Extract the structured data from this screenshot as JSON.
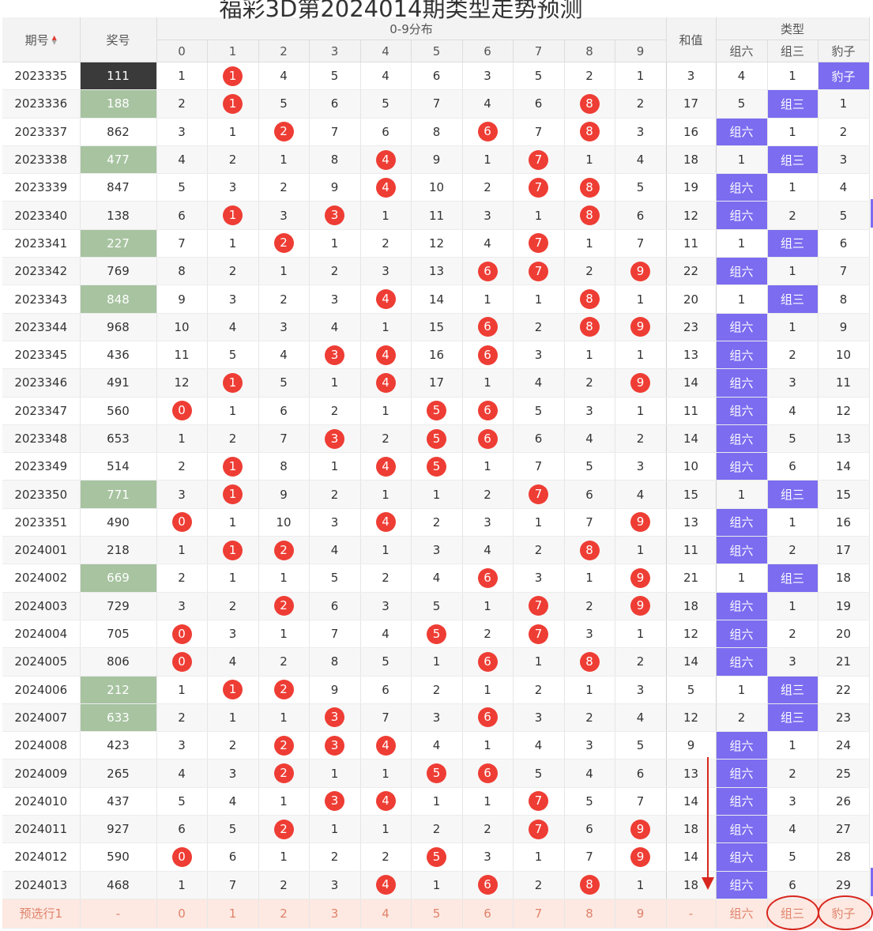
{
  "title": "福彩3D第2024014期类型走势预测",
  "header": {
    "issue": "期号",
    "number": "奖号",
    "distribution": "0-9分布",
    "sum": "和值",
    "type": "类型",
    "digits": [
      "0",
      "1",
      "2",
      "3",
      "4",
      "5",
      "6",
      "7",
      "8",
      "9"
    ],
    "types": [
      "组六",
      "组三",
      "豹子"
    ]
  },
  "rows": [
    {
      "issue": "2023335",
      "num": "111",
      "nstyle": "dark",
      "d": [
        "1",
        "1",
        "4",
        "5",
        "4",
        "6",
        "3",
        "5",
        "2",
        "1"
      ],
      "hit": [
        1
      ],
      "sum": "3",
      "t": [
        "4",
        "1",
        "豹子"
      ],
      "ton": 2
    },
    {
      "issue": "2023336",
      "num": "188",
      "nstyle": "green",
      "d": [
        "2",
        "1",
        "5",
        "6",
        "5",
        "7",
        "4",
        "6",
        "8",
        "2"
      ],
      "hit": [
        1,
        8
      ],
      "sum": "17",
      "t": [
        "5",
        "组三",
        "1"
      ],
      "ton": 1
    },
    {
      "issue": "2023337",
      "num": "862",
      "nstyle": "",
      "d": [
        "3",
        "1",
        "2",
        "7",
        "6",
        "8",
        "6",
        "7",
        "8",
        "3"
      ],
      "hit": [
        2,
        6,
        8
      ],
      "sum": "16",
      "t": [
        "组六",
        "1",
        "2"
      ],
      "ton": 0
    },
    {
      "issue": "2023338",
      "num": "477",
      "nstyle": "green",
      "d": [
        "4",
        "2",
        "1",
        "8",
        "4",
        "9",
        "1",
        "7",
        "1",
        "4"
      ],
      "hit": [
        4,
        7
      ],
      "sum": "18",
      "t": [
        "1",
        "组三",
        "3"
      ],
      "ton": 1
    },
    {
      "issue": "2023339",
      "num": "847",
      "nstyle": "",
      "d": [
        "5",
        "3",
        "2",
        "9",
        "4",
        "10",
        "2",
        "7",
        "8",
        "5"
      ],
      "hit": [
        4,
        7,
        8
      ],
      "sum": "19",
      "t": [
        "组六",
        "1",
        "4"
      ],
      "ton": 0
    },
    {
      "issue": "2023340",
      "num": "138",
      "nstyle": "",
      "d": [
        "6",
        "1",
        "3",
        "3",
        "1",
        "11",
        "3",
        "1",
        "8",
        "6"
      ],
      "hit": [
        1,
        3,
        8
      ],
      "sum": "12",
      "t": [
        "组六",
        "2",
        "5"
      ],
      "ton": 0
    },
    {
      "issue": "2023341",
      "num": "227",
      "nstyle": "green",
      "d": [
        "7",
        "1",
        "2",
        "1",
        "2",
        "12",
        "4",
        "7",
        "1",
        "7"
      ],
      "hit": [
        2,
        7
      ],
      "sum": "11",
      "t": [
        "1",
        "组三",
        "6"
      ],
      "ton": 1
    },
    {
      "issue": "2023342",
      "num": "769",
      "nstyle": "",
      "d": [
        "8",
        "2",
        "1",
        "2",
        "3",
        "13",
        "6",
        "7",
        "2",
        "9"
      ],
      "hit": [
        6,
        7,
        9
      ],
      "sum": "22",
      "t": [
        "组六",
        "1",
        "7"
      ],
      "ton": 0
    },
    {
      "issue": "2023343",
      "num": "848",
      "nstyle": "green",
      "d": [
        "9",
        "3",
        "2",
        "3",
        "4",
        "14",
        "1",
        "1",
        "8",
        "1"
      ],
      "hit": [
        4,
        8
      ],
      "sum": "20",
      "t": [
        "1",
        "组三",
        "8"
      ],
      "ton": 1
    },
    {
      "issue": "2023344",
      "num": "968",
      "nstyle": "",
      "d": [
        "10",
        "4",
        "3",
        "4",
        "1",
        "15",
        "6",
        "2",
        "8",
        "9"
      ],
      "hit": [
        6,
        8,
        9
      ],
      "sum": "23",
      "t": [
        "组六",
        "1",
        "9"
      ],
      "ton": 0
    },
    {
      "issue": "2023345",
      "num": "436",
      "nstyle": "",
      "d": [
        "11",
        "5",
        "4",
        "3",
        "4",
        "16",
        "6",
        "3",
        "1",
        "1"
      ],
      "hit": [
        3,
        4,
        6
      ],
      "sum": "13",
      "t": [
        "组六",
        "2",
        "10"
      ],
      "ton": 0
    },
    {
      "issue": "2023346",
      "num": "491",
      "nstyle": "",
      "d": [
        "12",
        "1",
        "5",
        "1",
        "4",
        "17",
        "1",
        "4",
        "2",
        "9"
      ],
      "hit": [
        1,
        4,
        9
      ],
      "sum": "14",
      "t": [
        "组六",
        "3",
        "11"
      ],
      "ton": 0
    },
    {
      "issue": "2023347",
      "num": "560",
      "nstyle": "",
      "d": [
        "0",
        "1",
        "6",
        "2",
        "1",
        "5",
        "6",
        "5",
        "3",
        "1"
      ],
      "hit": [
        0,
        5,
        6
      ],
      "sum": "11",
      "t": [
        "组六",
        "4",
        "12"
      ],
      "ton": 0
    },
    {
      "issue": "2023348",
      "num": "653",
      "nstyle": "",
      "d": [
        "1",
        "2",
        "7",
        "3",
        "2",
        "5",
        "6",
        "6",
        "4",
        "2"
      ],
      "hit": [
        3,
        5,
        6
      ],
      "sum": "14",
      "t": [
        "组六",
        "5",
        "13"
      ],
      "ton": 0
    },
    {
      "issue": "2023349",
      "num": "514",
      "nstyle": "",
      "d": [
        "2",
        "1",
        "8",
        "1",
        "4",
        "5",
        "1",
        "7",
        "5",
        "3"
      ],
      "hit": [
        1,
        4,
        5
      ],
      "sum": "10",
      "t": [
        "组六",
        "6",
        "14"
      ],
      "ton": 0
    },
    {
      "issue": "2023350",
      "num": "771",
      "nstyle": "green",
      "d": [
        "3",
        "1",
        "9",
        "2",
        "1",
        "1",
        "2",
        "7",
        "6",
        "4"
      ],
      "hit": [
        1,
        7
      ],
      "sum": "15",
      "t": [
        "1",
        "组三",
        "15"
      ],
      "ton": 1
    },
    {
      "issue": "2023351",
      "num": "490",
      "nstyle": "",
      "d": [
        "0",
        "1",
        "10",
        "3",
        "4",
        "2",
        "3",
        "1",
        "7",
        "9"
      ],
      "hit": [
        0,
        4,
        9
      ],
      "sum": "13",
      "t": [
        "组六",
        "1",
        "16"
      ],
      "ton": 0
    },
    {
      "issue": "2024001",
      "num": "218",
      "nstyle": "",
      "d": [
        "1",
        "1",
        "2",
        "4",
        "1",
        "3",
        "4",
        "2",
        "8",
        "1"
      ],
      "hit": [
        1,
        2,
        8
      ],
      "sum": "11",
      "t": [
        "组六",
        "2",
        "17"
      ],
      "ton": 0
    },
    {
      "issue": "2024002",
      "num": "669",
      "nstyle": "green",
      "d": [
        "2",
        "1",
        "1",
        "5",
        "2",
        "4",
        "6",
        "3",
        "1",
        "9"
      ],
      "hit": [
        6,
        9
      ],
      "sum": "21",
      "t": [
        "1",
        "组三",
        "18"
      ],
      "ton": 1
    },
    {
      "issue": "2024003",
      "num": "729",
      "nstyle": "",
      "d": [
        "3",
        "2",
        "2",
        "6",
        "3",
        "5",
        "1",
        "7",
        "2",
        "9"
      ],
      "hit": [
        2,
        7,
        9
      ],
      "sum": "18",
      "t": [
        "组六",
        "1",
        "19"
      ],
      "ton": 0
    },
    {
      "issue": "2024004",
      "num": "705",
      "nstyle": "",
      "d": [
        "0",
        "3",
        "1",
        "7",
        "4",
        "5",
        "2",
        "7",
        "3",
        "1"
      ],
      "hit": [
        0,
        5,
        7
      ],
      "sum": "12",
      "t": [
        "组六",
        "2",
        "20"
      ],
      "ton": 0
    },
    {
      "issue": "2024005",
      "num": "806",
      "nstyle": "",
      "d": [
        "0",
        "4",
        "2",
        "8",
        "5",
        "1",
        "6",
        "1",
        "8",
        "2"
      ],
      "hit": [
        0,
        6,
        8
      ],
      "sum": "14",
      "t": [
        "组六",
        "3",
        "21"
      ],
      "ton": 0
    },
    {
      "issue": "2024006",
      "num": "212",
      "nstyle": "green",
      "d": [
        "1",
        "1",
        "2",
        "9",
        "6",
        "2",
        "1",
        "2",
        "1",
        "3"
      ],
      "hit": [
        1,
        2
      ],
      "sum": "5",
      "t": [
        "1",
        "组三",
        "22"
      ],
      "ton": 1
    },
    {
      "issue": "2024007",
      "num": "633",
      "nstyle": "green",
      "d": [
        "2",
        "1",
        "1",
        "3",
        "7",
        "3",
        "6",
        "3",
        "2",
        "4"
      ],
      "hit": [
        3,
        6
      ],
      "sum": "12",
      "t": [
        "2",
        "组三",
        "23"
      ],
      "ton": 1
    },
    {
      "issue": "2024008",
      "num": "423",
      "nstyle": "",
      "d": [
        "3",
        "2",
        "2",
        "3",
        "4",
        "4",
        "1",
        "4",
        "3",
        "5"
      ],
      "hit": [
        2,
        3,
        4
      ],
      "sum": "9",
      "t": [
        "组六",
        "1",
        "24"
      ],
      "ton": 0
    },
    {
      "issue": "2024009",
      "num": "265",
      "nstyle": "",
      "d": [
        "4",
        "3",
        "2",
        "1",
        "1",
        "5",
        "6",
        "5",
        "4",
        "6"
      ],
      "hit": [
        2,
        5,
        6
      ],
      "sum": "13",
      "t": [
        "组六",
        "2",
        "25"
      ],
      "ton": 0
    },
    {
      "issue": "2024010",
      "num": "437",
      "nstyle": "",
      "d": [
        "5",
        "4",
        "1",
        "3",
        "4",
        "1",
        "1",
        "7",
        "5",
        "7"
      ],
      "hit": [
        3,
        4,
        7
      ],
      "sum": "14",
      "t": [
        "组六",
        "3",
        "26"
      ],
      "ton": 0
    },
    {
      "issue": "2024011",
      "num": "927",
      "nstyle": "",
      "d": [
        "6",
        "5",
        "2",
        "1",
        "1",
        "2",
        "2",
        "7",
        "6",
        "9"
      ],
      "hit": [
        2,
        7,
        9
      ],
      "sum": "18",
      "t": [
        "组六",
        "4",
        "27"
      ],
      "ton": 0
    },
    {
      "issue": "2024012",
      "num": "590",
      "nstyle": "",
      "d": [
        "0",
        "6",
        "1",
        "2",
        "2",
        "5",
        "3",
        "1",
        "7",
        "9"
      ],
      "hit": [
        0,
        5,
        9
      ],
      "sum": "14",
      "t": [
        "组六",
        "5",
        "28"
      ],
      "ton": 0
    },
    {
      "issue": "2024013",
      "num": "468",
      "nstyle": "",
      "d": [
        "1",
        "7",
        "2",
        "3",
        "4",
        "1",
        "6",
        "2",
        "8",
        "1"
      ],
      "hit": [
        4,
        6,
        8
      ],
      "sum": "18",
      "t": [
        "组六",
        "6",
        "29"
      ],
      "ton": 0
    }
  ],
  "prediction": {
    "label": "预选行1",
    "num": "-",
    "digits": [
      "0",
      "1",
      "2",
      "3",
      "4",
      "5",
      "6",
      "7",
      "8",
      "9"
    ],
    "sum": "-",
    "types": [
      "组六",
      "组三",
      "豹子"
    ]
  },
  "colors": {
    "ball": "#ee3d34",
    "type_on": "#7b6cf0",
    "green": "#a7c3a0",
    "dark": "#3a3a3a",
    "annotation": "#d8271e"
  }
}
